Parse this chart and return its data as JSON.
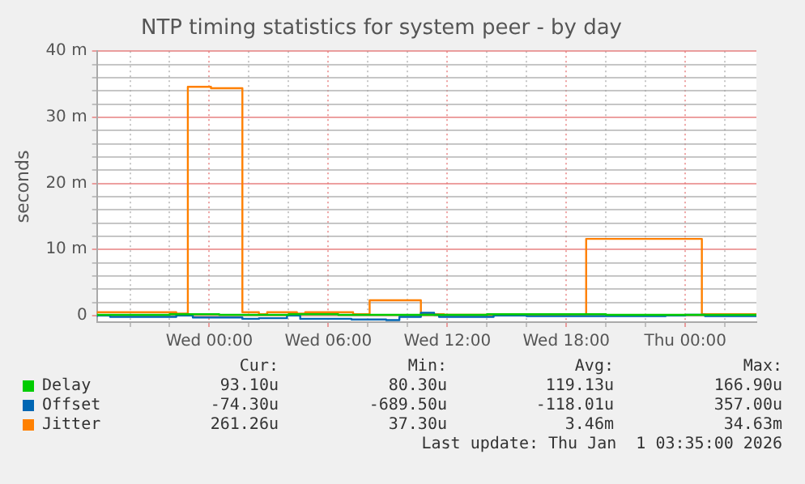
{
  "chart_data": {
    "type": "step",
    "title": "NTP timing statistics for system peer - by day",
    "ylabel": "seconds",
    "xlim": [
      "2025-12-30T18:20",
      "2026-01-01T03:35"
    ],
    "xticks": [
      {
        "value": "2025-12-30T20:00",
        "label": null
      },
      {
        "value": "2025-12-30T22:00",
        "label": null
      },
      {
        "value": "2025-12-31T00:00",
        "label": "Wed 00:00"
      },
      {
        "value": "2025-12-31T02:00",
        "label": null
      },
      {
        "value": "2025-12-31T04:00",
        "label": null
      },
      {
        "value": "2025-12-31T06:00",
        "label": "Wed 06:00"
      },
      {
        "value": "2025-12-31T08:00",
        "label": null
      },
      {
        "value": "2025-12-31T10:00",
        "label": null
      },
      {
        "value": "2025-12-31T12:00",
        "label": "Wed 12:00"
      },
      {
        "value": "2025-12-31T14:00",
        "label": null
      },
      {
        "value": "2025-12-31T16:00",
        "label": null
      },
      {
        "value": "2025-12-31T18:00",
        "label": "Wed 18:00"
      },
      {
        "value": "2025-12-31T20:00",
        "label": null
      },
      {
        "value": "2025-12-31T22:00",
        "label": null
      },
      {
        "value": "2026-01-01T00:00",
        "label": "Thu 00:00"
      },
      {
        "value": "2026-01-01T02:00",
        "label": null
      }
    ],
    "ylim": [
      -1,
      40
    ],
    "yticks": [
      {
        "value": 0,
        "label": "0"
      },
      {
        "value": 2,
        "label": null
      },
      {
        "value": 4,
        "label": null
      },
      {
        "value": 6,
        "label": null
      },
      {
        "value": 8,
        "label": null
      },
      {
        "value": 10,
        "label": "10 m"
      },
      {
        "value": 12,
        "label": null
      },
      {
        "value": 14,
        "label": null
      },
      {
        "value": 16,
        "label": null
      },
      {
        "value": 18,
        "label": null
      },
      {
        "value": 20,
        "label": "20 m"
      },
      {
        "value": 22,
        "label": null
      },
      {
        "value": 24,
        "label": null
      },
      {
        "value": 26,
        "label": null
      },
      {
        "value": 28,
        "label": null
      },
      {
        "value": 30,
        "label": "30 m"
      },
      {
        "value": 32,
        "label": null
      },
      {
        "value": 34,
        "label": null
      },
      {
        "value": 36,
        "label": null
      },
      {
        "value": 38,
        "label": null
      },
      {
        "value": 40,
        "label": "40 m"
      }
    ],
    "grid": true,
    "legend": "bottom",
    "series": [
      {
        "name": "Delay",
        "color": "#00cc00",
        "x": [
          "2025-12-30T18:20",
          "2025-12-30T22:00",
          "2025-12-31T00:30",
          "2025-12-31T04:00",
          "2025-12-31T06:30",
          "2025-12-31T08:00",
          "2025-12-31T14:00",
          "2025-12-31T20:00",
          "2026-01-01T00:00",
          "2026-01-01T03:35"
        ],
        "values": [
          0.1,
          0.1,
          0.2,
          0.1,
          0.2,
          0.1,
          0.1,
          0.2,
          0.1,
          0.1
        ]
      },
      {
        "name": "Offset",
        "color": "#0066b3",
        "x": [
          "2025-12-30T18:20",
          "2025-12-30T19:00",
          "2025-12-30T22:20",
          "2025-12-30T23:10",
          "2025-12-31T01:40",
          "2025-12-31T02:30",
          "2025-12-31T03:55",
          "2025-12-31T04:35",
          "2025-12-31T07:10",
          "2025-12-31T08:55",
          "2025-12-31T09:35",
          "2025-12-31T10:40",
          "2025-12-31T11:20",
          "2025-12-31T11:35",
          "2025-12-31T14:20",
          "2025-12-31T16:00",
          "2025-12-31T23:00",
          "2026-01-01T00:00",
          "2026-01-01T01:00",
          "2026-01-01T03:35"
        ],
        "values": [
          -0.2,
          0.0,
          -0.2,
          0.0,
          -0.3,
          -0.5,
          -0.4,
          0.0,
          -0.5,
          -0.6,
          -0.7,
          -0.2,
          0.4,
          0.1,
          -0.2,
          0.0,
          -0.1,
          0.0,
          0.1,
          -0.1
        ]
      },
      {
        "name": "Jitter",
        "color": "#ff8000",
        "x": [
          "2025-12-30T18:20",
          "2025-12-30T22:20",
          "2025-12-30T22:55",
          "2025-12-31T00:05",
          "2025-12-31T01:40",
          "2025-12-31T02:30",
          "2025-12-31T02:55",
          "2025-12-31T04:25",
          "2025-12-31T04:50",
          "2025-12-31T07:15",
          "2025-12-31T08:05",
          "2025-12-31T10:40",
          "2025-12-31T11:50",
          "2025-12-31T18:10",
          "2025-12-31T19:00",
          "2026-01-01T00:50",
          "2026-01-01T03:15",
          "2026-01-01T03:35"
        ],
        "values": [
          0.3,
          0.5,
          0.3,
          34.6,
          34.4,
          0.5,
          0.2,
          0.5,
          0.3,
          0.5,
          0.2,
          2.3,
          0.2,
          0.1,
          0.2,
          11.6,
          0.2,
          0.2
        ]
      }
    ],
    "annotations": [
      "Cur:",
      "Min:",
      "Avg:",
      "Max:",
      "93.10u",
      "80.30u",
      "119.13u",
      "166.90u",
      "-74.30u",
      "-689.50u",
      "-118.01u",
      "357.00u",
      "261.26u",
      "37.30u",
      "3.46m",
      "34.63m",
      "Last update: Thu Jan  1 03:35:00 2026"
    ]
  }
}
